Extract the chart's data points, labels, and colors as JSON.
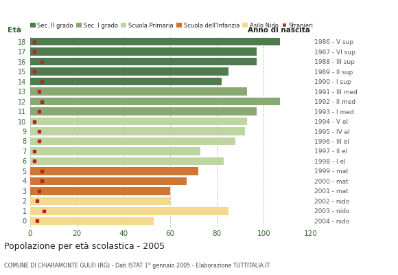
{
  "ages": [
    18,
    17,
    16,
    15,
    14,
    13,
    12,
    11,
    10,
    9,
    8,
    7,
    6,
    5,
    4,
    3,
    2,
    1,
    0
  ],
  "anno": [
    "1986 - V sup",
    "1987 - VI sup",
    "1988 - III sup",
    "1989 - II sup",
    "1990 - I sup",
    "1991 - III med",
    "1992 - II med",
    "1993 - I med",
    "1994 - V el",
    "1995 - IV el",
    "1996 - III el",
    "1997 - II el",
    "1998 - I el",
    "1999 - mat",
    "2000 - mat",
    "2001 - mat",
    "2002 - nido",
    "2003 - nido",
    "2004 - nido"
  ],
  "values": [
    107,
    97,
    97,
    85,
    82,
    93,
    107,
    97,
    93,
    92,
    88,
    73,
    83,
    72,
    67,
    60,
    60,
    85,
    53
  ],
  "stranieri": [
    2,
    2,
    5,
    2,
    5,
    4,
    5,
    4,
    2,
    4,
    4,
    2,
    2,
    5,
    5,
    4,
    3,
    6,
    3
  ],
  "bar_colors": [
    "#4e7c4e",
    "#4e7c4e",
    "#4e7c4e",
    "#4e7c4e",
    "#4e7c4e",
    "#88aa72",
    "#88aa72",
    "#88aa72",
    "#bdd6a0",
    "#bdd6a0",
    "#bdd6a0",
    "#bdd6a0",
    "#bdd6a0",
    "#cc7733",
    "#cc7733",
    "#cc7733",
    "#f5d98a",
    "#f5d98a",
    "#f5d98a"
  ],
  "legend_colors": [
    "#4e7c4e",
    "#88aa72",
    "#bdd6a0",
    "#cc7733",
    "#f5d98a",
    "#bb2222"
  ],
  "legend_labels": [
    "Sec. II grado",
    "Sec. I grado",
    "Scuola Primaria",
    "Scuola dell'Infanzia",
    "Asilo Nido",
    "Stranieri"
  ],
  "xlim": [
    0,
    120
  ],
  "xticks": [
    0,
    20,
    40,
    60,
    80,
    100,
    120
  ],
  "ylabel": "Età",
  "right_header": "Anno di nascita",
  "title": "Popolazione per età scolastica - 2005",
  "subtitle": "COMUNE DI CHIARAMONTE GULFI (RG) - Dati ISTAT 1° gennaio 2005 - Elaborazione TUTTITALIA.IT",
  "bg_color": "#ffffff",
  "grid_color": "#bbbbbb",
  "bar_height": 0.8,
  "stranieri_color": "#bb2222",
  "ylabel_color": "#336633",
  "ytick_color": "#336633",
  "xtick_color": "#336633",
  "right_label_color": "#555555",
  "right_header_color": "#222222",
  "title_color": "#222222",
  "subtitle_color": "#444444"
}
